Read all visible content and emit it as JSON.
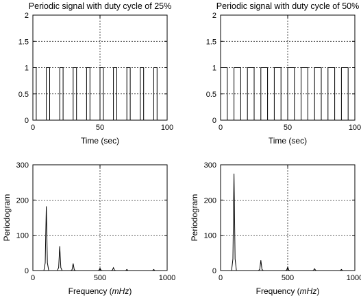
{
  "chart_data": [
    {
      "type": "line",
      "title": "Periodic signal with duty cycle of 25%",
      "xlabel": "Time (sec)",
      "ylabel": "",
      "xlim": [
        0,
        100
      ],
      "ylim": [
        0,
        2
      ],
      "xticks": [
        0,
        50,
        100
      ],
      "yticks": [
        0,
        0.5,
        1,
        1.5,
        2
      ],
      "grid": true,
      "signal": {
        "period": 10,
        "duty": 0.25,
        "low": 0,
        "high": 1,
        "t_start": 0,
        "t_end": 100
      }
    },
    {
      "type": "line",
      "title": "Periodic signal with duty cycle of 50%",
      "xlabel": "Time (sec)",
      "ylabel": "",
      "xlim": [
        0,
        100
      ],
      "ylim": [
        0,
        2
      ],
      "xticks": [
        0,
        50,
        100
      ],
      "yticks": [
        0,
        0.5,
        1,
        1.5,
        2
      ],
      "grid": true,
      "signal": {
        "period": 10,
        "duty": 0.5,
        "low": 0,
        "high": 1,
        "t_start": 0,
        "t_end": 100
      }
    },
    {
      "type": "line",
      "title": "",
      "xlabel": "Frequency (mHz)",
      "xlabel_parts": [
        "Frequency (",
        "mHz",
        ")"
      ],
      "ylabel": "Periodogram",
      "xlim": [
        0,
        1000
      ],
      "ylim": [
        0,
        300
      ],
      "xticks": [
        0,
        500,
        1000
      ],
      "yticks": [
        0,
        100,
        200,
        300
      ],
      "grid": true,
      "peaks": [
        {
          "x": 100,
          "y": 182
        },
        {
          "x": 200,
          "y": 69
        },
        {
          "x": 300,
          "y": 20
        },
        {
          "x": 500,
          "y": 6
        },
        {
          "x": 600,
          "y": 8
        },
        {
          "x": 700,
          "y": 3
        },
        {
          "x": 900,
          "y": 3
        }
      ]
    },
    {
      "type": "line",
      "title": "",
      "xlabel": "Frequency (mHz)",
      "xlabel_parts": [
        "Frequency (",
        "mHz",
        ")"
      ],
      "ylabel": "Periodogram",
      "xlim": [
        0,
        1000
      ],
      "ylim": [
        0,
        300
      ],
      "xticks": [
        0,
        500,
        1000
      ],
      "yticks": [
        0,
        100,
        200,
        300
      ],
      "grid": true,
      "peaks": [
        {
          "x": 100,
          "y": 275
        },
        {
          "x": 300,
          "y": 29
        },
        {
          "x": 500,
          "y": 10
        },
        {
          "x": 700,
          "y": 5
        },
        {
          "x": 900,
          "y": 3
        }
      ]
    }
  ]
}
